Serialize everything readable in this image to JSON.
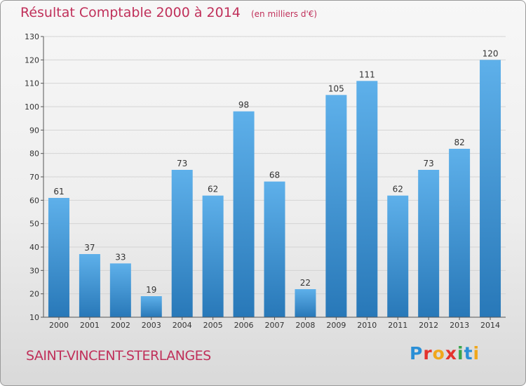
{
  "header": {
    "title": "Résultat Comptable 2000 à 2014",
    "subtitle": "(en milliers d'€)"
  },
  "footer": {
    "place": "SAINT-VINCENT-STERLANGES",
    "brand": "Proxiti",
    "brand_letters": [
      {
        "ch": "P",
        "color": "#2a8fd6"
      },
      {
        "ch": "r",
        "color": "#e4332d"
      },
      {
        "ch": "o",
        "color": "#f0a71c"
      },
      {
        "ch": "x",
        "color": "#e4332d"
      },
      {
        "ch": "i",
        "color": "#3aa64c"
      },
      {
        "ch": "t",
        "color": "#2a8fd6"
      },
      {
        "ch": "i",
        "color": "#f0a71c"
      }
    ]
  },
  "colors": {
    "accent": "#c0305a",
    "bar_light": "#5eb0ea",
    "bar_dark": "#2878b8",
    "grid": "#d4d4d4",
    "axis": "#555555"
  },
  "chart_data": {
    "type": "bar",
    "title": "Résultat Comptable 2000 à 2014",
    "subtitle": "(en milliers d'€)",
    "categories": [
      "2000",
      "2001",
      "2002",
      "2003",
      "2004",
      "2005",
      "2006",
      "2007",
      "2008",
      "2009",
      "2010",
      "2011",
      "2012",
      "2013",
      "2014"
    ],
    "values": [
      61,
      37,
      33,
      19,
      73,
      62,
      98,
      68,
      22,
      105,
      111,
      62,
      73,
      82,
      120
    ],
    "ylim": [
      10,
      130
    ],
    "yticks": [
      10,
      20,
      30,
      40,
      50,
      60,
      70,
      80,
      90,
      100,
      110,
      120,
      130
    ],
    "grid": true,
    "xlabel": "",
    "ylabel": ""
  }
}
